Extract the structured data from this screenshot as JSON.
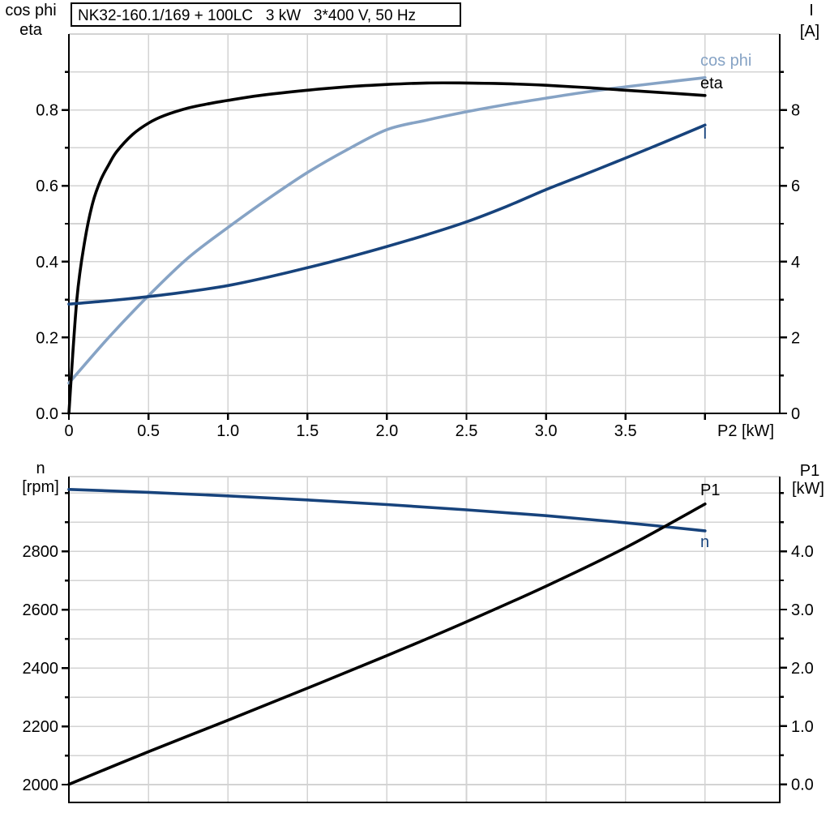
{
  "title_box": {
    "title": "NK32-160.1/169 + 100LC   3 kW   3*400 V, 50 Hz"
  },
  "colors": {
    "cos_phi": "#86a3c5",
    "eta": "#000000",
    "current": "#17437c",
    "speed": "#17437c",
    "p1": "#000000",
    "grid": "#d3d3d3",
    "axis": "#000000",
    "background": "#ffffff"
  },
  "top_chart": {
    "y_left_axis_title_line1": "cos phi",
    "y_left_axis_title_line2": "eta",
    "y_right_axis_title_line1": "I",
    "y_right_axis_title_line2": "[A]",
    "x_axis_title": "P2 [kW]",
    "curve_labels": {
      "cos_phi": "cos phi",
      "eta": "eta",
      "current": "I"
    }
  },
  "bottom_chart": {
    "y_left_axis_title_line1": "n",
    "y_left_axis_title_line2": "[rpm]",
    "y_right_axis_title_line1": "P1",
    "y_right_axis_title_line2": "[kW]",
    "curve_labels": {
      "p1": "P1",
      "n": "n"
    }
  },
  "chart_data": [
    {
      "type": "line",
      "title": "NK32-160.1/169 + 100LC   3 kW   3*400 V, 50 Hz",
      "legend_position": "end-of-curve labels",
      "grid": true,
      "x": {
        "label": "P2 [kW]",
        "min": 0,
        "max": 4.47,
        "major_ticks": [
          0,
          0.5,
          1,
          1.5,
          2,
          2.5,
          3,
          3.5,
          4
        ],
        "major_tick_labels": [
          "0",
          "0.5",
          "1.0",
          "1.5",
          "2.0",
          "2.5",
          "3.0",
          "3.5",
          ""
        ],
        "gridlines": [
          0.5,
          1,
          1.5,
          2,
          2.5,
          3,
          3.5,
          4
        ]
      },
      "y_left": {
        "label": "cos phi / eta",
        "min": 0,
        "max": 1.0,
        "major_ticks": [
          0,
          0.2,
          0.4,
          0.6,
          0.8
        ],
        "major_tick_labels": [
          "0.0",
          "0.2",
          "0.4",
          "0.6",
          "0.8"
        ],
        "minor_ticks": [
          0.1,
          0.3,
          0.5,
          0.7,
          0.9
        ],
        "gridlines": [
          0.1,
          0.2,
          0.3,
          0.4,
          0.5,
          0.6,
          0.7,
          0.8,
          0.9,
          1.0
        ]
      },
      "y_right": {
        "label": "I [A]",
        "min": 0,
        "max": 10,
        "major_ticks": [
          0,
          2,
          4,
          6,
          8
        ],
        "major_tick_labels": [
          "0",
          "2",
          "4",
          "6",
          "8"
        ],
        "minor_ticks": [
          1,
          3,
          5,
          7,
          9
        ]
      },
      "series": [
        {
          "name": "cos phi",
          "axis": "left",
          "color": "#86a3c5",
          "x": [
            0,
            0.25,
            0.5,
            0.75,
            1,
            1.25,
            1.5,
            1.75,
            2,
            2.25,
            2.5,
            2.75,
            3,
            3.25,
            3.5,
            3.75,
            4
          ],
          "y": [
            0.08,
            0.2,
            0.31,
            0.41,
            0.49,
            0.565,
            0.635,
            0.695,
            0.748,
            0.773,
            0.795,
            0.814,
            0.831,
            0.847,
            0.861,
            0.873,
            0.885
          ]
        },
        {
          "name": "eta",
          "axis": "left",
          "color": "#000000",
          "x": [
            0,
            0.05,
            0.1,
            0.15,
            0.2,
            0.25,
            0.3,
            0.4,
            0.5,
            0.6,
            0.75,
            0.9,
            1,
            1.2,
            1.5,
            1.75,
            2,
            2.25,
            2.5,
            2.75,
            3,
            3.25,
            3.5,
            3.75,
            4
          ],
          "y": [
            0,
            0.3,
            0.455,
            0.555,
            0.615,
            0.655,
            0.69,
            0.735,
            0.765,
            0.785,
            0.805,
            0.818,
            0.825,
            0.838,
            0.852,
            0.861,
            0.867,
            0.871,
            0.871,
            0.869,
            0.865,
            0.859,
            0.852,
            0.845,
            0.838
          ]
        },
        {
          "name": "I",
          "axis": "right",
          "color": "#17437c",
          "x": [
            0,
            0.25,
            0.5,
            0.75,
            1,
            1.25,
            1.5,
            1.75,
            2,
            2.25,
            2.5,
            2.75,
            3,
            3.25,
            3.5,
            3.75,
            4
          ],
          "y": [
            2.88,
            2.97,
            3.08,
            3.21,
            3.37,
            3.59,
            3.84,
            4.11,
            4.4,
            4.71,
            5.05,
            5.45,
            5.9,
            6.31,
            6.73,
            7.16,
            7.6
          ]
        }
      ]
    },
    {
      "type": "line",
      "title": "",
      "legend_position": "end-of-curve labels",
      "grid": true,
      "x": {
        "label": "",
        "min": 0,
        "max": 4.47,
        "major_ticks": [],
        "major_tick_labels": [],
        "gridlines": [
          0.5,
          1,
          1.5,
          2,
          2.5,
          3,
          3.5,
          4
        ]
      },
      "y_left": {
        "label": "n [rpm]",
        "min": 1939,
        "max": 3056,
        "major_ticks": [
          2000,
          2200,
          2400,
          2600,
          2800
        ],
        "major_tick_labels": [
          "2000",
          "2200",
          "2400",
          "2600",
          "2800"
        ],
        "minor_ticks": [
          2100,
          2300,
          2500,
          2700,
          2900,
          3000
        ],
        "gridlines": [
          2000,
          2100,
          2200,
          2300,
          2400,
          2500,
          2600,
          2700,
          2800,
          2900,
          3000
        ]
      },
      "y_right": {
        "label": "P1 [kW]",
        "min": -0.31,
        "max": 5.28,
        "major_ticks": [
          0,
          1,
          2,
          3,
          4
        ],
        "major_tick_labels": [
          "0.0",
          "1.0",
          "2.0",
          "3.0",
          "4.0"
        ],
        "minor_ticks": [
          0.5,
          1.5,
          2.5,
          3.5,
          4.5,
          5
        ]
      },
      "series": [
        {
          "name": "n",
          "axis": "left",
          "color": "#17437c",
          "x": [
            0,
            0.5,
            1,
            1.5,
            2,
            2.5,
            3,
            3.5,
            4
          ],
          "y": [
            3012,
            3002,
            2990,
            2976,
            2960,
            2942,
            2922,
            2898,
            2870
          ]
        },
        {
          "name": "P1",
          "axis": "right",
          "color": "#000000",
          "x": [
            0,
            0.5,
            1,
            1.5,
            2,
            2.5,
            3,
            3.5,
            4
          ],
          "y": [
            0,
            0.56,
            1.1,
            1.65,
            2.21,
            2.79,
            3.4,
            4.06,
            4.81
          ]
        }
      ]
    }
  ]
}
